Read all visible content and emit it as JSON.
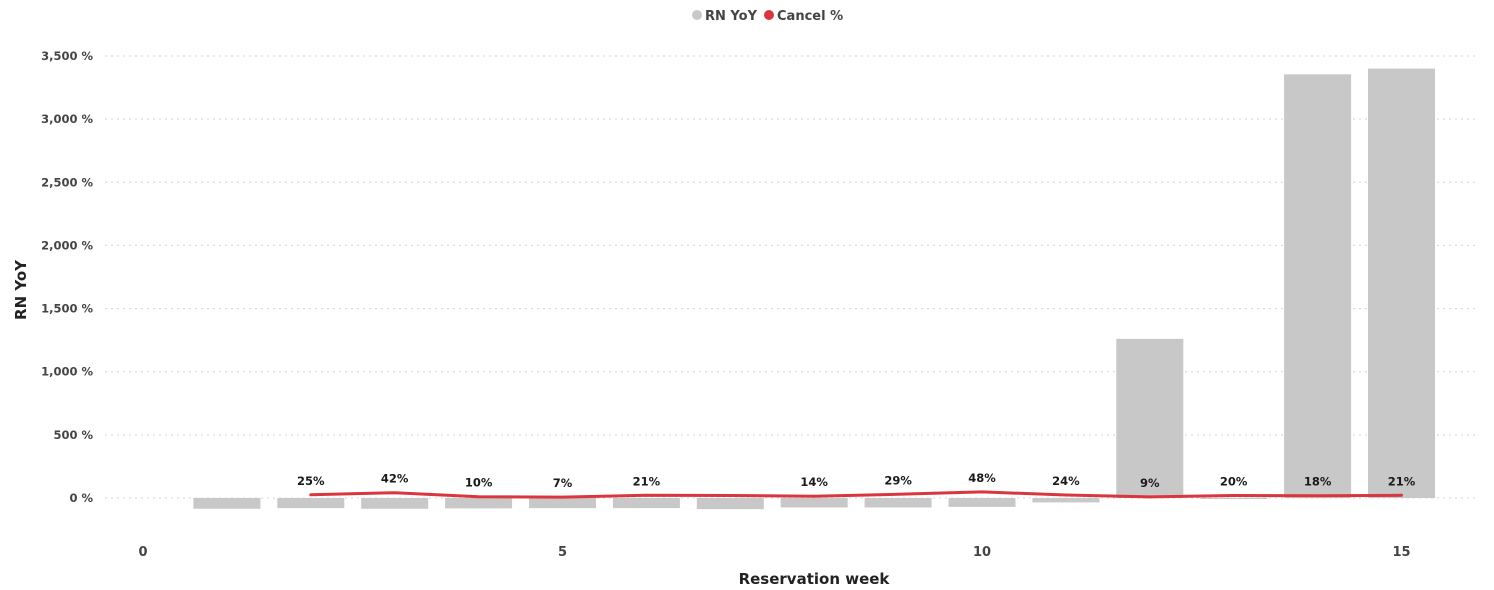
{
  "chart_data": {
    "type": "bar",
    "title": "",
    "xlabel": "Reservation week",
    "ylabel": "RN YoY",
    "legend": {
      "placement": "top-center",
      "entries": [
        {
          "name": "RN YoY",
          "color": "#c8c8c8"
        },
        {
          "name": "Cancel %",
          "color": "#d9363e"
        }
      ]
    },
    "grid": true,
    "xlim": [
      0,
      16
    ],
    "x_ticks": [
      0,
      5,
      10,
      15
    ],
    "ylim": [
      -150,
      3600
    ],
    "y_ticks": [
      0,
      500,
      1000,
      1500,
      2000,
      2500,
      3000,
      3500
    ],
    "y_tick_labels": [
      "0 %",
      "500 %",
      "1,000 %",
      "1,500 %",
      "2,000 %",
      "2,500 %",
      "3,000 %",
      "3,500 %"
    ],
    "series": [
      {
        "name": "RN YoY",
        "type": "bar",
        "color": "#c8c8c8",
        "x": [
          1,
          2,
          3,
          4,
          5,
          6,
          7,
          8,
          9,
          10,
          11,
          12,
          13,
          14,
          15
        ],
        "values": [
          -85,
          -80,
          -85,
          -82,
          -80,
          -80,
          -88,
          -75,
          -75,
          -70,
          -35,
          1260,
          -5,
          3355,
          3400
        ]
      },
      {
        "name": "Cancel %",
        "type": "line",
        "color": "#d9363e",
        "x": [
          2,
          3,
          4,
          5,
          6,
          7,
          8,
          9,
          10,
          11,
          12,
          13,
          14,
          15
        ],
        "values": [
          25,
          42,
          10,
          7,
          21,
          20,
          14,
          29,
          48,
          24,
          9,
          20,
          18,
          21
        ],
        "data_labels": [
          "25%",
          "42%",
          "10%",
          "7%",
          "21%",
          null,
          "14%",
          "29%",
          "48%",
          "24%",
          "9%",
          "20%",
          "18%",
          "21%"
        ]
      }
    ]
  }
}
